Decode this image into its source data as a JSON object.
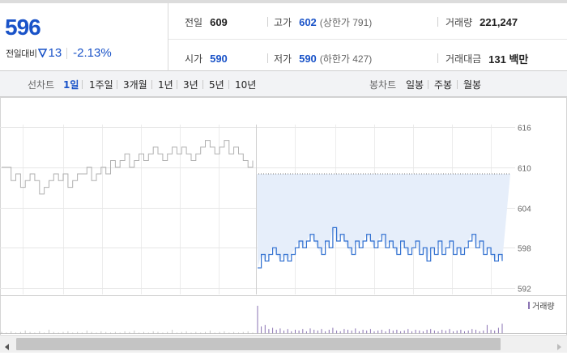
{
  "quote": {
    "price": "596",
    "change_label": "전일대비",
    "change_icon": "down-triangle-icon",
    "change_value": "13",
    "change_rate": "-2.13%",
    "prev_close": {
      "label": "전일",
      "value": "609"
    },
    "open": {
      "label": "시가",
      "value": "590"
    },
    "high": {
      "label": "고가",
      "value": "602",
      "sub": "(상한가 791)"
    },
    "low": {
      "label": "저가",
      "value": "590",
      "sub": "(하한가 427)"
    },
    "volume": {
      "label": "거래량",
      "value": "221,247"
    },
    "amount": {
      "label": "거래대금",
      "value": "131 백만"
    },
    "colors": {
      "down": "#1a53c8",
      "text": "#222222"
    }
  },
  "tabs": {
    "line_label": "선차트",
    "line_tabs": [
      "1일",
      "1주일",
      "3개월",
      "1년",
      "3년",
      "5년",
      "10년"
    ],
    "line_active": "1일",
    "candle_label": "봉차트",
    "candle_tabs": [
      "일봉",
      "주봉",
      "월봉"
    ]
  },
  "chart_data": {
    "type": "line",
    "prev_close": 609,
    "ylim": [
      592,
      616
    ],
    "yticks": [
      616,
      610,
      604,
      598,
      592
    ],
    "grid": true,
    "colors": {
      "previous_day": "#b0b0b0",
      "today": "#2f6fd0",
      "fill": "#e6eefa",
      "volume": "#8a73b3"
    },
    "series": [
      {
        "values": [
          610,
          610,
          608,
          609,
          607,
          608,
          609,
          608,
          606,
          607,
          608,
          609,
          608,
          609,
          607,
          608,
          609,
          609,
          610,
          608,
          609,
          610,
          609,
          611,
          610,
          611,
          612,
          610,
          611,
          612,
          611,
          612,
          613,
          612,
          611,
          612,
          613,
          612,
          613,
          612,
          611,
          612,
          613,
          614,
          613,
          612,
          613,
          614,
          612,
          613,
          612,
          611,
          610,
          611
        ]
      },
      {
        "values": [
          595,
          597,
          596,
          597,
          598,
          597,
          596,
          597,
          596,
          597,
          598,
          599,
          598,
          599,
          600,
          599,
          598,
          597,
          599,
          598,
          601,
          599,
          600,
          599,
          598,
          597,
          599,
          598,
          599,
          600,
          599,
          598,
          599,
          600,
          598,
          599,
          598,
          597,
          599,
          598,
          597,
          598,
          599,
          597,
          598,
          596,
          598,
          597,
          599,
          597,
          598,
          599,
          597,
          598,
          597,
          598,
          599,
          600,
          598,
          599,
          597,
          598,
          597,
          596,
          597,
          596
        ]
      }
    ],
    "volume": {
      "legend": "거래량",
      "previous_day": [
        2,
        1,
        3,
        1,
        2,
        4,
        2,
        1,
        3,
        1,
        5,
        2,
        1,
        2,
        3,
        1,
        2,
        1,
        4,
        2,
        1,
        3,
        2,
        1,
        2,
        1,
        3,
        2,
        4,
        1,
        2,
        1,
        3,
        2,
        1,
        2,
        5,
        1,
        2,
        3,
        1,
        2,
        1,
        2,
        4,
        1,
        2,
        3,
        1,
        2,
        1,
        2,
        3,
        1
      ],
      "today": [
        40,
        10,
        12,
        6,
        8,
        5,
        7,
        4,
        6,
        3,
        5,
        4,
        6,
        3,
        7,
        5,
        4,
        6,
        3,
        5,
        8,
        4,
        3,
        6,
        5,
        4,
        7,
        3,
        5,
        4,
        6,
        3,
        4,
        5,
        3,
        6,
        4,
        5,
        3,
        4,
        6,
        3,
        5,
        4,
        3,
        5,
        6,
        4,
        3,
        5,
        4,
        6,
        3,
        4,
        5,
        3,
        4,
        6,
        5,
        3,
        4,
        12,
        5,
        4,
        8,
        14
      ]
    }
  }
}
